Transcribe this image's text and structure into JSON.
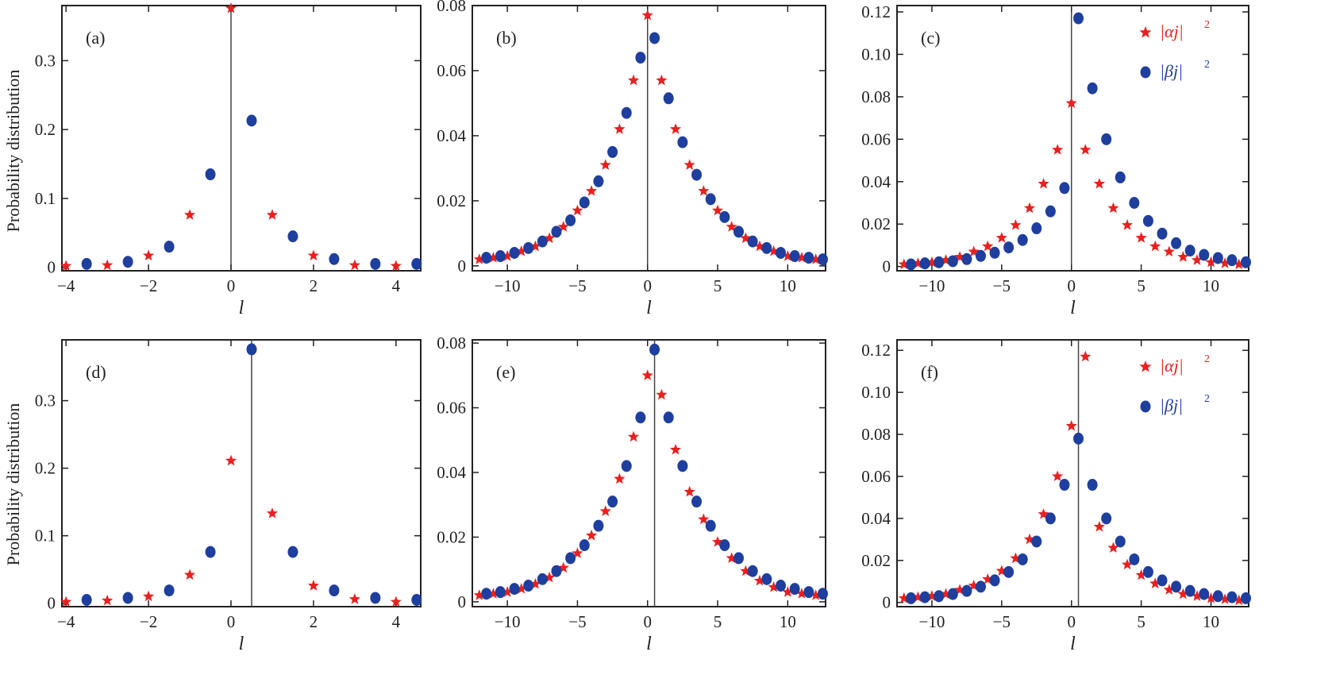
{
  "ylabel": "Probability distribution",
  "legend": {
    "alpha_main": "|αj|",
    "beta_main": "|βj|",
    "exp": "2"
  },
  "chart_data": [
    {
      "id": "a",
      "panel_label": "(a)",
      "type": "scatter",
      "xlabel": "l",
      "xlim": [
        -4.1,
        4.6
      ],
      "ylim": [
        -0.005,
        0.38
      ],
      "xticks": [
        -4,
        -2,
        0,
        2,
        4
      ],
      "yticks": [
        0,
        0.1,
        0.2,
        0.3
      ],
      "vline": 0,
      "legend": false,
      "series": [
        {
          "marker": "star",
          "x": [
            -4,
            -3,
            -2,
            -1,
            0,
            1,
            2,
            3,
            4
          ],
          "y": [
            0.002,
            0.003,
            0.017,
            0.076,
            0.376,
            0.076,
            0.017,
            0.003,
            0.002
          ]
        },
        {
          "marker": "dot",
          "x": [
            -3.5,
            -2.5,
            -1.5,
            -0.5,
            0.5,
            1.5,
            2.5,
            3.5,
            4.5
          ],
          "y": [
            0.005,
            0.008,
            0.03,
            0.135,
            0.213,
            0.045,
            0.012,
            0.005,
            0.005
          ]
        }
      ]
    },
    {
      "id": "b",
      "panel_label": "(b)",
      "type": "scatter",
      "xlabel": "l",
      "xlim": [
        -12.5,
        12.7
      ],
      "ylim": [
        -0.0015,
        0.08
      ],
      "xticks": [
        -10,
        -5,
        0,
        5,
        10
      ],
      "yticks": [
        0,
        0.02,
        0.04,
        0.06,
        0.08
      ],
      "vline": 0,
      "legend": false,
      "series": [
        {
          "marker": "star",
          "x": [
            -12,
            -11,
            -10,
            -9,
            -8,
            -7,
            -6,
            -5,
            -4,
            -3,
            -2,
            -1,
            0,
            1,
            2,
            3,
            4,
            5,
            6,
            7,
            8,
            9,
            10,
            11,
            12
          ],
          "y": [
            0.002,
            0.0025,
            0.003,
            0.0045,
            0.006,
            0.0085,
            0.012,
            0.017,
            0.023,
            0.031,
            0.042,
            0.057,
            0.077,
            0.057,
            0.042,
            0.031,
            0.023,
            0.017,
            0.012,
            0.0085,
            0.006,
            0.0045,
            0.003,
            0.0025,
            0.002
          ]
        },
        {
          "marker": "dot",
          "x": [
            -11.5,
            -10.5,
            -9.5,
            -8.5,
            -7.5,
            -6.5,
            -5.5,
            -4.5,
            -3.5,
            -2.5,
            -1.5,
            -0.5,
            0.5,
            1.5,
            2.5,
            3.5,
            4.5,
            5.5,
            6.5,
            7.5,
            8.5,
            9.5,
            10.5,
            11.5,
            12.5
          ],
          "y": [
            0.0025,
            0.003,
            0.004,
            0.0055,
            0.0075,
            0.0105,
            0.014,
            0.0195,
            0.026,
            0.035,
            0.047,
            0.064,
            0.07,
            0.0515,
            0.038,
            0.028,
            0.0205,
            0.015,
            0.0105,
            0.0075,
            0.0055,
            0.004,
            0.003,
            0.0025,
            0.002
          ]
        }
      ]
    },
    {
      "id": "c",
      "panel_label": "(c)",
      "type": "scatter",
      "xlabel": "l",
      "xlim": [
        -12.5,
        12.7
      ],
      "ylim": [
        -0.002,
        0.123
      ],
      "xticks": [
        -10,
        -5,
        0,
        5,
        10
      ],
      "yticks": [
        0,
        0.02,
        0.04,
        0.06,
        0.08,
        0.1,
        0.12
      ],
      "vline": 0,
      "legend": true,
      "series": [
        {
          "marker": "star",
          "x": [
            -12,
            -11,
            -10,
            -9,
            -8,
            -7,
            -6,
            -5,
            -4,
            -3,
            -2,
            -1,
            0,
            1,
            2,
            3,
            4,
            5,
            6,
            7,
            8,
            9,
            10,
            11,
            12
          ],
          "y": [
            0.001,
            0.0015,
            0.002,
            0.003,
            0.0045,
            0.007,
            0.0095,
            0.0135,
            0.0195,
            0.0275,
            0.039,
            0.055,
            0.077,
            0.055,
            0.039,
            0.0275,
            0.0195,
            0.0135,
            0.0095,
            0.007,
            0.0045,
            0.003,
            0.002,
            0.0015,
            0.001
          ]
        },
        {
          "marker": "dot",
          "x": [
            -11.5,
            -10.5,
            -9.5,
            -8.5,
            -7.5,
            -6.5,
            -5.5,
            -4.5,
            -3.5,
            -2.5,
            -1.5,
            -0.5,
            0.5,
            1.5,
            2.5,
            3.5,
            4.5,
            5.5,
            6.5,
            7.5,
            8.5,
            9.5,
            10.5,
            11.5,
            12.5
          ],
          "y": [
            0.001,
            0.0015,
            0.002,
            0.0025,
            0.0035,
            0.005,
            0.0065,
            0.009,
            0.0125,
            0.018,
            0.026,
            0.037,
            0.117,
            0.084,
            0.06,
            0.042,
            0.03,
            0.0215,
            0.0155,
            0.011,
            0.0075,
            0.0055,
            0.004,
            0.003,
            0.002
          ]
        }
      ]
    },
    {
      "id": "d",
      "panel_label": "(d)",
      "type": "scatter",
      "xlabel": "l",
      "xlim": [
        -4.1,
        4.6
      ],
      "ylim": [
        -0.005,
        0.39
      ],
      "xticks": [
        -4,
        -2,
        0,
        2,
        4
      ],
      "yticks": [
        0,
        0.1,
        0.2,
        0.3
      ],
      "vline": 0.5,
      "legend": false,
      "series": [
        {
          "marker": "star",
          "x": [
            -4,
            -3,
            -2,
            -1,
            0,
            1,
            2,
            3,
            4
          ],
          "y": [
            0.002,
            0.004,
            0.01,
            0.042,
            0.211,
            0.133,
            0.026,
            0.006,
            0.002
          ]
        },
        {
          "marker": "dot",
          "x": [
            -3.5,
            -2.5,
            -1.5,
            -0.5,
            0.5,
            1.5,
            2.5,
            3.5,
            4.5
          ],
          "y": [
            0.005,
            0.008,
            0.019,
            0.076,
            0.376,
            0.076,
            0.019,
            0.008,
            0.005
          ]
        }
      ]
    },
    {
      "id": "e",
      "panel_label": "(e)",
      "type": "scatter",
      "xlabel": "l",
      "xlim": [
        -12.5,
        12.7
      ],
      "ylim": [
        -0.0015,
        0.081
      ],
      "xticks": [
        -10,
        -5,
        0,
        5,
        10
      ],
      "yticks": [
        0,
        0.02,
        0.04,
        0.06,
        0.08
      ],
      "vline": 0.5,
      "legend": false,
      "series": [
        {
          "marker": "star",
          "x": [
            -12,
            -11,
            -10,
            -9,
            -8,
            -7,
            -6,
            -5,
            -4,
            -3,
            -2,
            -1,
            0,
            1,
            2,
            3,
            4,
            5,
            6,
            7,
            8,
            9,
            10,
            11,
            12
          ],
          "y": [
            0.002,
            0.0025,
            0.003,
            0.004,
            0.0055,
            0.0075,
            0.0105,
            0.015,
            0.0205,
            0.028,
            0.038,
            0.051,
            0.07,
            0.064,
            0.047,
            0.034,
            0.0255,
            0.0185,
            0.0135,
            0.0095,
            0.0065,
            0.0045,
            0.003,
            0.0025,
            0.002
          ]
        },
        {
          "marker": "dot",
          "x": [
            -11.5,
            -10.5,
            -9.5,
            -8.5,
            -7.5,
            -6.5,
            -5.5,
            -4.5,
            -3.5,
            -2.5,
            -1.5,
            -0.5,
            0.5,
            1.5,
            2.5,
            3.5,
            4.5,
            5.5,
            6.5,
            7.5,
            8.5,
            9.5,
            10.5,
            11.5,
            12.5
          ],
          "y": [
            0.0025,
            0.003,
            0.004,
            0.005,
            0.007,
            0.0095,
            0.0135,
            0.0175,
            0.0235,
            0.031,
            0.042,
            0.057,
            0.078,
            0.057,
            0.042,
            0.031,
            0.0235,
            0.0175,
            0.0135,
            0.0095,
            0.007,
            0.005,
            0.004,
            0.003,
            0.0025
          ]
        }
      ]
    },
    {
      "id": "f",
      "panel_label": "(f)",
      "type": "scatter",
      "xlabel": "l",
      "xlim": [
        -12.5,
        12.7
      ],
      "ylim": [
        -0.002,
        0.125
      ],
      "xticks": [
        -10,
        -5,
        0,
        5,
        10
      ],
      "yticks": [
        0,
        0.02,
        0.04,
        0.06,
        0.08,
        0.1,
        0.12
      ],
      "vline": 0.5,
      "legend": true,
      "series": [
        {
          "marker": "star",
          "x": [
            -12,
            -11,
            -10,
            -9,
            -8,
            -7,
            -6,
            -5,
            -4,
            -3,
            -2,
            -1,
            0,
            1,
            2,
            3,
            4,
            5,
            6,
            7,
            8,
            9,
            10,
            11,
            12
          ],
          "y": [
            0.002,
            0.0025,
            0.003,
            0.004,
            0.006,
            0.008,
            0.011,
            0.015,
            0.021,
            0.03,
            0.042,
            0.06,
            0.084,
            0.117,
            0.036,
            0.026,
            0.018,
            0.013,
            0.009,
            0.006,
            0.004,
            0.003,
            0.002,
            0.0015,
            0.001
          ]
        },
        {
          "marker": "dot",
          "x": [
            -11.5,
            -10.5,
            -9.5,
            -8.5,
            -7.5,
            -6.5,
            -5.5,
            -4.5,
            -3.5,
            -2.5,
            -1.5,
            -0.5,
            0.5,
            1.5,
            2.5,
            3.5,
            4.5,
            5.5,
            6.5,
            7.5,
            8.5,
            9.5,
            10.5,
            11.5,
            12.5
          ],
          "y": [
            0.002,
            0.0025,
            0.003,
            0.004,
            0.0055,
            0.0075,
            0.0105,
            0.0145,
            0.0205,
            0.029,
            0.04,
            0.056,
            0.078,
            0.056,
            0.04,
            0.029,
            0.0205,
            0.0145,
            0.0105,
            0.0075,
            0.0055,
            0.004,
            0.003,
            0.0025,
            0.002
          ]
        }
      ]
    }
  ]
}
